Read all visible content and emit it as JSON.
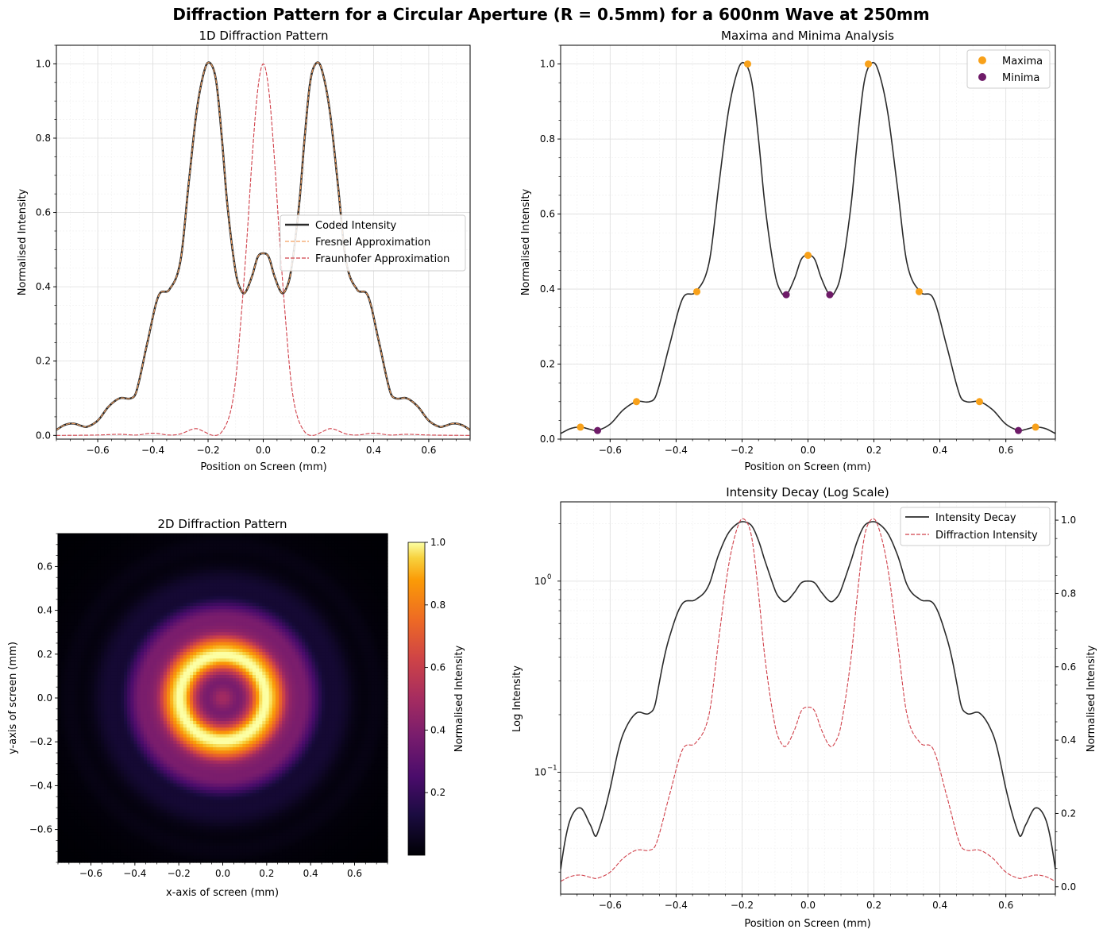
{
  "figure": {
    "suptitle": "Diffraction Pattern for a Circular Aperture (R = 0.5mm) for a 600nm Wave at 250mm"
  },
  "colors": {
    "coded": "#2b2b2b",
    "fresnel": "#f4a060",
    "fraunhofer": "#d0404a",
    "maxima": "#f8a11a",
    "minima": "#6e1b68",
    "grid_major": "#dddddd",
    "grid_minor": "#f0f0f0"
  },
  "chart_data": [
    {
      "id": "p1",
      "type": "line",
      "title": "1D Diffraction Pattern",
      "xlabel": "Position on Screen (mm)",
      "ylabel": "Normalised Intensity",
      "xlim": [
        -0.75,
        0.75
      ],
      "ylim": [
        -0.01,
        1.05
      ],
      "xticks": [
        -0.6,
        -0.4,
        -0.2,
        0.0,
        0.2,
        0.4,
        0.6
      ],
      "yticks": [
        0.0,
        0.2,
        0.4,
        0.6,
        0.8,
        1.0
      ],
      "grid": true,
      "legend": "center-right",
      "x": [
        -0.75,
        -0.72,
        -0.69,
        -0.66,
        -0.64,
        -0.6,
        -0.56,
        -0.52,
        -0.48,
        -0.46,
        -0.42,
        -0.38,
        -0.34,
        -0.3,
        -0.27,
        -0.24,
        -0.21,
        -0.19,
        -0.17,
        -0.15,
        -0.13,
        -0.1,
        -0.08,
        -0.065,
        -0.04,
        -0.02,
        0.0,
        0.02,
        0.04,
        0.065,
        0.08,
        0.1,
        0.13,
        0.15,
        0.17,
        0.19,
        0.21,
        0.24,
        0.27,
        0.3,
        0.34,
        0.38,
        0.42,
        0.46,
        0.48,
        0.52,
        0.56,
        0.6,
        0.64,
        0.66,
        0.69,
        0.72,
        0.75
      ],
      "series": [
        {
          "name": "Coded Intensity",
          "style": "solid",
          "y": [
            0.015,
            0.028,
            0.032,
            0.026,
            0.023,
            0.04,
            0.078,
            0.1,
            0.1,
            0.118,
            0.25,
            0.375,
            0.393,
            0.47,
            0.68,
            0.88,
            0.99,
            1.0,
            0.95,
            0.8,
            0.62,
            0.44,
            0.39,
            0.385,
            0.43,
            0.48,
            0.49,
            0.48,
            0.43,
            0.385,
            0.39,
            0.44,
            0.62,
            0.8,
            0.95,
            1.0,
            0.99,
            0.88,
            0.68,
            0.47,
            0.393,
            0.375,
            0.25,
            0.118,
            0.1,
            0.1,
            0.078,
            0.04,
            0.023,
            0.026,
            0.032,
            0.028,
            0.015
          ]
        },
        {
          "name": "Fresnel Approximation",
          "style": "dashed",
          "y": [
            0.015,
            0.028,
            0.032,
            0.026,
            0.023,
            0.04,
            0.078,
            0.1,
            0.1,
            0.118,
            0.25,
            0.375,
            0.393,
            0.47,
            0.68,
            0.88,
            0.99,
            1.0,
            0.95,
            0.8,
            0.62,
            0.44,
            0.39,
            0.385,
            0.43,
            0.48,
            0.49,
            0.48,
            0.43,
            0.385,
            0.39,
            0.44,
            0.62,
            0.8,
            0.95,
            1.0,
            0.99,
            0.88,
            0.68,
            0.47,
            0.393,
            0.375,
            0.25,
            0.118,
            0.1,
            0.1,
            0.078,
            0.04,
            0.023,
            0.026,
            0.032,
            0.028,
            0.015
          ]
        },
        {
          "name": "Fraunhofer Approximation",
          "style": "dashed",
          "x": [
            -0.75,
            -0.6,
            -0.52,
            -0.46,
            -0.4,
            -0.34,
            -0.3,
            -0.26,
            -0.24,
            -0.22,
            -0.18,
            -0.15,
            -0.12,
            -0.1,
            -0.08,
            -0.06,
            -0.04,
            -0.02,
            0.0,
            0.02,
            0.04,
            0.06,
            0.08,
            0.1,
            0.12,
            0.15,
            0.18,
            0.22,
            0.24,
            0.26,
            0.3,
            0.34,
            0.4,
            0.46,
            0.52,
            0.6,
            0.75
          ],
          "y": [
            0.0,
            0.001,
            0.003,
            0.001,
            0.006,
            0.001,
            0.004,
            0.016,
            0.018,
            0.012,
            0.0,
            0.01,
            0.06,
            0.15,
            0.32,
            0.52,
            0.75,
            0.93,
            1.0,
            0.93,
            0.75,
            0.52,
            0.32,
            0.15,
            0.06,
            0.01,
            0.0,
            0.012,
            0.018,
            0.016,
            0.004,
            0.001,
            0.006,
            0.001,
            0.003,
            0.001,
            0.0
          ]
        }
      ]
    },
    {
      "id": "p2",
      "type": "line",
      "title": "Maxima and Minima Analysis",
      "xlabel": "Position on Screen (mm)",
      "ylabel": "Normalised Intensity",
      "xlim": [
        -0.75,
        0.75
      ],
      "ylim": [
        0.0,
        1.05
      ],
      "xticks": [
        -0.6,
        -0.4,
        -0.2,
        0.0,
        0.2,
        0.4,
        0.6
      ],
      "yticks": [
        0.0,
        0.2,
        0.4,
        0.6,
        0.8,
        1.0
      ],
      "grid": true,
      "legend": "top-right",
      "curve_source": "Coded Intensity",
      "points": [
        {
          "name": "Maxima",
          "x": [
            -0.69,
            -0.52,
            -0.337,
            -0.183,
            0.0,
            0.183,
            0.337,
            0.52,
            0.69
          ],
          "y": [
            0.032,
            0.1,
            0.393,
            1.0,
            0.49,
            1.0,
            0.393,
            0.1,
            0.032
          ]
        },
        {
          "name": "Minima",
          "x": [
            -0.638,
            -0.066,
            0.066,
            0.638
          ],
          "y": [
            0.023,
            0.385,
            0.385,
            0.023
          ]
        }
      ]
    },
    {
      "id": "p3",
      "type": "heatmap",
      "title": "2D Diffraction Pattern",
      "xlabel": "x-axis of screen (mm)",
      "ylabel": "y-axis of screen (mm)",
      "xlim": [
        -0.75,
        0.75
      ],
      "ylim": [
        -0.75,
        0.75
      ],
      "xticks": [
        -0.6,
        -0.4,
        -0.2,
        0.0,
        0.2,
        0.4,
        0.6
      ],
      "yticks": [
        -0.6,
        -0.4,
        -0.2,
        0.0,
        0.2,
        0.4,
        0.6
      ],
      "colorbar": {
        "label": "Normalised Intensity",
        "ticks": [
          0.2,
          0.4,
          0.6,
          0.8,
          1.0
        ],
        "range": [
          0.0,
          1.0
        ]
      },
      "colormap": "inferno",
      "radial_profile_source": "Coded Intensity"
    },
    {
      "id": "p4",
      "type": "line",
      "title": "Intensity Decay (Log Scale)",
      "xlabel": "Position on Screen (mm)",
      "ylabel": "Log Intensity",
      "ylabel_right": "Normalised Intensity",
      "yscale": "log",
      "xlim": [
        -0.75,
        0.75
      ],
      "ylim_log": [
        0.023,
        2.6
      ],
      "ylim_right": [
        -0.02,
        1.05
      ],
      "xticks": [
        -0.6,
        -0.4,
        -0.2,
        0.0,
        0.2,
        0.4,
        0.6
      ],
      "yticks_log": [
        "10^-1",
        "10^0"
      ],
      "yticks_right": [
        0.0,
        0.2,
        0.4,
        0.6,
        0.8,
        1.0
      ],
      "grid": true,
      "legend": "top-right",
      "series": [
        {
          "name": "Intensity Decay",
          "axis": "left",
          "style": "solid",
          "x": [
            -0.75,
            -0.72,
            -0.69,
            -0.66,
            -0.64,
            -0.6,
            -0.56,
            -0.52,
            -0.48,
            -0.46,
            -0.42,
            -0.38,
            -0.34,
            -0.3,
            -0.27,
            -0.24,
            -0.21,
            -0.19,
            -0.17,
            -0.15,
            -0.13,
            -0.1,
            -0.08,
            -0.065,
            -0.04,
            -0.02,
            0.0,
            0.02,
            0.04,
            0.065,
            0.08,
            0.1,
            0.13,
            0.15,
            0.17,
            0.19,
            0.21,
            0.24,
            0.27,
            0.3,
            0.34,
            0.38,
            0.42,
            0.46,
            0.48,
            0.52,
            0.56,
            0.6,
            0.64,
            0.66,
            0.69,
            0.72,
            0.75
          ],
          "y": [
            0.031,
            0.057,
            0.065,
            0.053,
            0.047,
            0.082,
            0.159,
            0.204,
            0.204,
            0.241,
            0.51,
            0.765,
            0.802,
            0.959,
            1.39,
            1.8,
            2.02,
            2.04,
            1.94,
            1.63,
            1.27,
            0.898,
            0.796,
            0.786,
            0.878,
            0.98,
            1.0,
            0.98,
            0.878,
            0.786,
            0.796,
            0.898,
            1.27,
            1.63,
            1.94,
            2.04,
            2.02,
            1.8,
            1.39,
            0.959,
            0.802,
            0.765,
            0.51,
            0.241,
            0.204,
            0.204,
            0.159,
            0.082,
            0.047,
            0.053,
            0.065,
            0.057,
            0.031
          ]
        },
        {
          "name": "Diffraction Intensity",
          "axis": "right",
          "style": "dashed",
          "source": "Coded Intensity"
        }
      ]
    }
  ]
}
